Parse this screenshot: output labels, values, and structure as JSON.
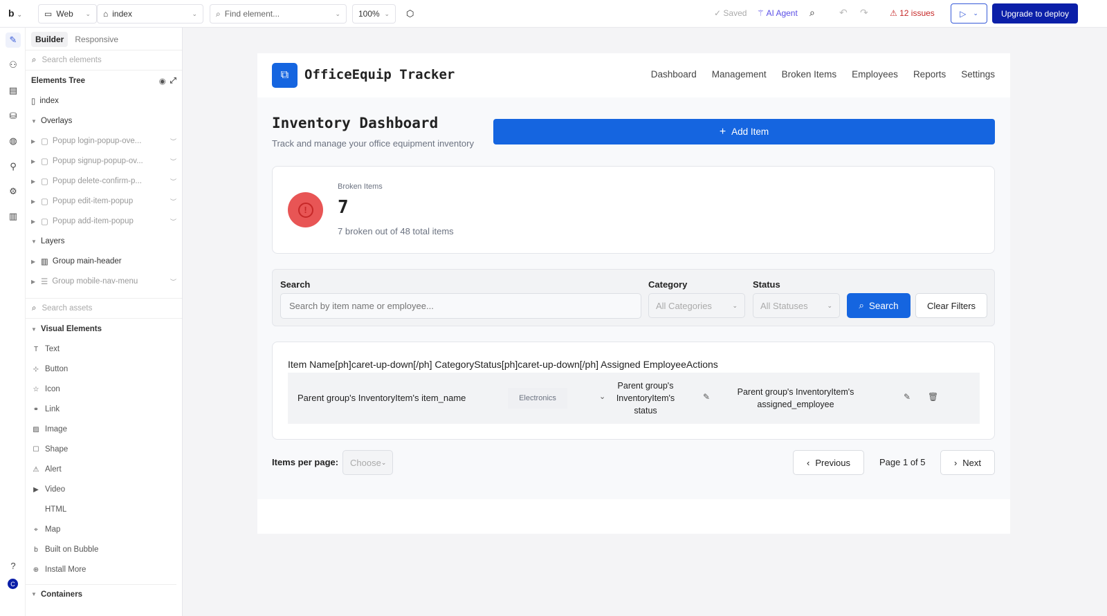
{
  "topbar": {
    "logo": "b",
    "platform": "Web",
    "page": "index",
    "find_placeholder": "Find element...",
    "zoom": "100%",
    "saved": "Saved",
    "ai_agent": "AI Agent",
    "issues": "12 issues",
    "upgrade": "Upgrade to deploy"
  },
  "panel": {
    "tabs": [
      "Builder",
      "Responsive"
    ],
    "search_elements": "Search elements",
    "tree_title": "Elements Tree",
    "index": "index",
    "overlays": "Overlays",
    "overlay_items": [
      "Popup login-popup-ove...",
      "Popup signup-popup-ov...",
      "Popup delete-confirm-p...",
      "Popup edit-item-popup",
      "Popup add-item-popup"
    ],
    "layers": "Layers",
    "layer_items": [
      "Group main-header",
      "Group mobile-nav-menu"
    ],
    "search_assets": "Search assets",
    "visual_elements": "Visual Elements",
    "visual_items": [
      "Text",
      "Button",
      "Icon",
      "Link",
      "Image",
      "Shape",
      "Alert",
      "Video",
      "HTML",
      "Map",
      "Built on Bubble",
      "Install More"
    ],
    "containers": "Containers",
    "avatar": "C"
  },
  "app": {
    "brand": "OfficeEquip Tracker",
    "nav": [
      "Dashboard",
      "Management",
      "Broken Items",
      "Employees",
      "Reports",
      "Settings"
    ],
    "title": "Inventory Dashboard",
    "subtitle": "Track and manage your office equipment inventory",
    "add_item": "Add Item",
    "stat": {
      "label": "Broken Items",
      "value": "7",
      "desc": "7 broken out of 48 total items"
    },
    "filters": {
      "search_label": "Search",
      "search_placeholder": "Search by item name or employee...",
      "category_label": "Category",
      "category_value": "All Categories",
      "status_label": "Status",
      "status_value": "All Statuses",
      "search_btn": "Search",
      "clear_btn": "Clear Filters"
    },
    "table": {
      "header": "Item Name[ph]caret-up-down[/ph] CategoryStatus[ph]caret-up-down[/ph] Assigned EmployeeActions",
      "row": {
        "item_name": "Parent group's InventoryItem's item_name",
        "category": "Electronics",
        "status": "Parent group's InventoryItem's status",
        "employee": "Parent group's InventoryItem's assigned_employee"
      }
    },
    "pagination": {
      "per_page_label": "Items per page:",
      "per_page_value": "Choose",
      "previous": "Previous",
      "page": "Page 1 of 5",
      "next": "Next"
    }
  },
  "colors": {
    "primary": "#1565e0",
    "upgrade": "#0b1fa8",
    "danger": "#e85555",
    "issues": "#c62828"
  }
}
